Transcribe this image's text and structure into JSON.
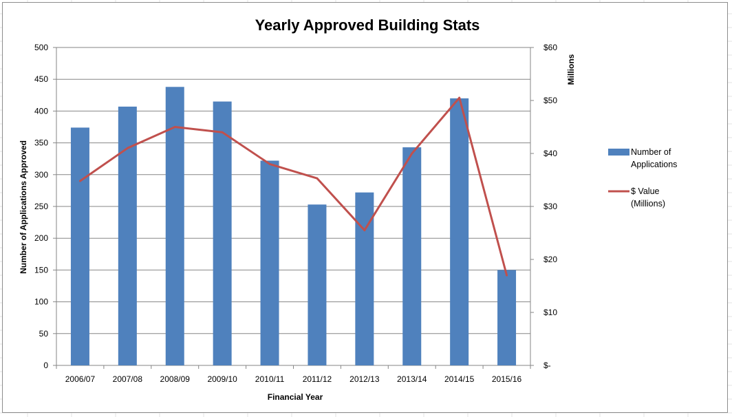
{
  "chart_data": {
    "type": "bar",
    "title": "Yearly Approved Building Stats",
    "xlabel": "Financial Year",
    "ylabel": "Number of Applications Approved",
    "y2label": "Millions",
    "categories": [
      "2006/07",
      "2007/08",
      "2008/09",
      "2009/10",
      "2010/11",
      "2011/12",
      "2012/13",
      "2013/14",
      "2014/15",
      "2015/16"
    ],
    "ylim": [
      0,
      500
    ],
    "y_ticks": [
      0,
      50,
      100,
      150,
      200,
      250,
      300,
      350,
      400,
      450,
      500
    ],
    "y2lim": [
      0,
      60
    ],
    "y2_ticks": [
      0,
      10,
      20,
      30,
      40,
      50,
      60
    ],
    "y2_tick_labels": [
      "$-",
      "$10",
      "$20",
      "$30",
      "$40",
      "$50",
      "$60"
    ],
    "grid": true,
    "legend_position": "right",
    "series": [
      {
        "name": "Number of Applications",
        "legend_lines": [
          "Number of",
          "Applications"
        ],
        "type": "bar",
        "axis": "left",
        "color": "#4f81bd",
        "values": [
          374,
          407,
          438,
          415,
          322,
          253,
          272,
          343,
          420,
          150
        ]
      },
      {
        "name": "$ Value (Millions)",
        "legend_lines": [
          "$ Value",
          "(Millions)"
        ],
        "type": "line",
        "axis": "right",
        "color": "#c0504d",
        "values": [
          34.8,
          41,
          45,
          44,
          38,
          35.3,
          25.5,
          40,
          50.5,
          17
        ]
      }
    ]
  }
}
